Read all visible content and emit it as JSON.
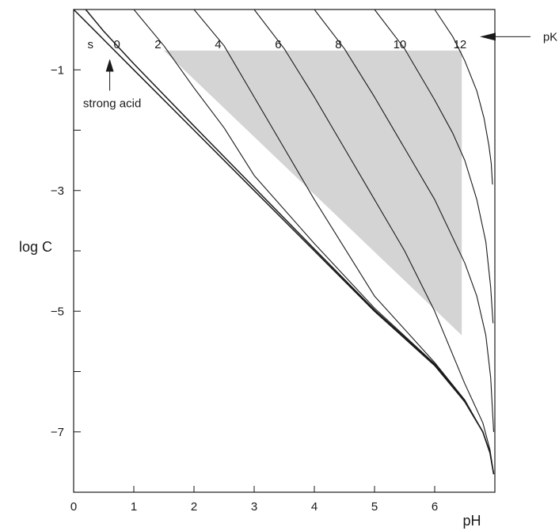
{
  "chart_data": {
    "type": "line",
    "xlabel": "pH",
    "ylabel": "log C",
    "xlim": [
      0,
      7
    ],
    "ylim": [
      -8,
      0
    ],
    "x_ticks": [
      0,
      1,
      2,
      3,
      4,
      5,
      6
    ],
    "x_tick_labels": [
      "0",
      "1",
      "2",
      "3",
      "4",
      "5",
      "6"
    ],
    "y_ticks": [
      -8,
      -7,
      -6,
      -5,
      -4,
      -3,
      -2,
      -1
    ],
    "y_tick_labels": [
      "",
      "−7",
      "",
      "−5",
      "",
      "−3",
      "",
      "−1"
    ],
    "grid": false,
    "series": [
      {
        "name": "s",
        "x": [
          0,
          0.5,
          1,
          2,
          3,
          4,
          5,
          6,
          6.5,
          6.8,
          6.92,
          6.98
        ],
        "y": [
          0,
          -0.5,
          -1,
          -2,
          -3,
          -4,
          -5.0,
          -5.9,
          -6.5,
          -7.0,
          -7.35,
          -7.7
        ]
      },
      {
        "name": "0",
        "x": [
          0.2,
          0.5,
          1,
          2,
          3,
          4,
          5,
          6,
          6.5,
          6.8,
          6.92,
          6.98
        ],
        "y": [
          0,
          -0.36,
          -0.9,
          -1.93,
          -2.95,
          -3.97,
          -4.98,
          -5.88,
          -6.5,
          -7.0,
          -7.35,
          -7.7
        ]
      },
      {
        "name": "2",
        "x": [
          1.0,
          1.5,
          2,
          2.5,
          3,
          4,
          5,
          6,
          6.5,
          6.8,
          6.92,
          6.98
        ],
        "y": [
          0,
          -0.6,
          -1.3,
          -1.96,
          -2.75,
          -3.88,
          -4.95,
          -5.87,
          -6.48,
          -7.0,
          -7.35,
          -7.7
        ]
      },
      {
        "name": "4",
        "x": [
          2.0,
          2.5,
          3,
          3.5,
          4,
          5,
          6,
          6.5,
          6.8,
          6.92,
          6.98
        ],
        "y": [
          0,
          -0.6,
          -1.45,
          -2.3,
          -3.15,
          -4.75,
          -5.85,
          -6.47,
          -7.0,
          -7.35,
          -7.7
        ]
      },
      {
        "name": "6",
        "x": [
          3.0,
          3.5,
          4,
          4.5,
          5,
          5.5,
          6,
          6.5,
          6.8,
          6.92,
          6.98
        ],
        "y": [
          0,
          -0.65,
          -1.45,
          -2.3,
          -3.15,
          -4.0,
          -5.0,
          -6.2,
          -6.85,
          -7.3,
          -7.7
        ]
      },
      {
        "name": "8",
        "x": [
          4.0,
          4.5,
          5,
          5.5,
          6,
          6.5,
          6.7,
          6.85,
          6.93,
          6.98
        ],
        "y": [
          0,
          -0.65,
          -1.45,
          -2.3,
          -3.15,
          -4.2,
          -4.75,
          -5.4,
          -6.1,
          -7.0
        ]
      },
      {
        "name": "10",
        "x": [
          5.0,
          5.5,
          6,
          6.3,
          6.5,
          6.7,
          6.85,
          6.93,
          6.97
        ],
        "y": [
          0,
          -0.65,
          -1.5,
          -2.05,
          -2.5,
          -3.15,
          -3.85,
          -4.6,
          -5.2
        ]
      },
      {
        "name": "12",
        "x": [
          6.0,
          6.3,
          6.5,
          6.7,
          6.82,
          6.9,
          6.94,
          6.96
        ],
        "y": [
          0,
          -0.45,
          -0.85,
          -1.35,
          -1.8,
          -2.25,
          -2.55,
          -2.9
        ]
      }
    ],
    "curve_labels": [
      {
        "text": "s",
        "x": 0.28,
        "y": -0.58
      },
      {
        "text": "0",
        "x": 0.72,
        "y": -0.58
      },
      {
        "text": "2",
        "x": 1.4,
        "y": -0.58
      },
      {
        "text": "4",
        "x": 2.4,
        "y": -0.58
      },
      {
        "text": "6",
        "x": 3.4,
        "y": -0.58
      },
      {
        "text": "8",
        "x": 4.4,
        "y": -0.58
      },
      {
        "text": "10",
        "x": 5.42,
        "y": -0.58
      },
      {
        "text": "12",
        "x": 6.42,
        "y": -0.58
      }
    ],
    "shaded_region": {
      "color": "#d4d4d4",
      "points": [
        [
          1.5,
          -0.68
        ],
        [
          6.45,
          -0.68
        ],
        [
          6.45,
          -5.4
        ]
      ]
    },
    "annotations": [
      {
        "text": "strong acid",
        "target_x": 0.6,
        "target_y": -0.82
      },
      {
        "text": "pK",
        "target_x": 6.75,
        "target_y": -0.45
      }
    ]
  }
}
